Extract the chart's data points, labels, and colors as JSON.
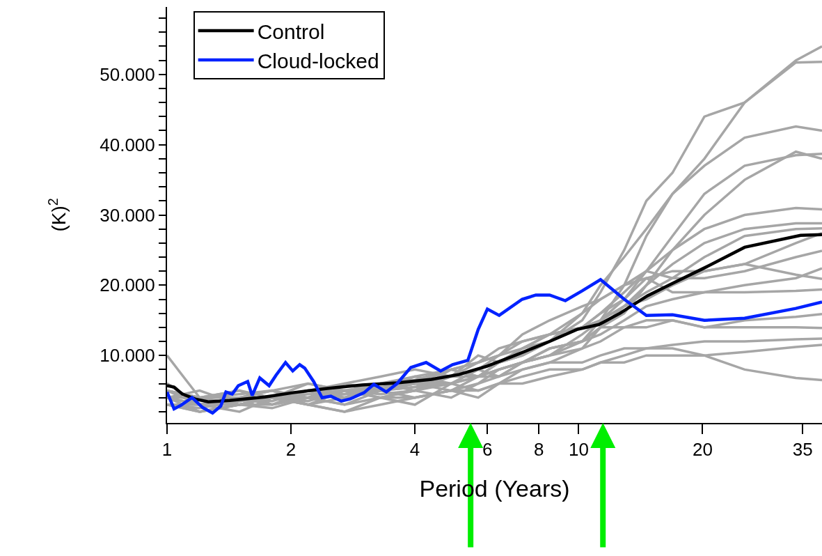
{
  "chart_data": {
    "type": "line",
    "xlabel": "Period (Years)",
    "ylabel": "(K)$^{2}$",
    "log": "x",
    "xlim": [
      1,
      39
    ],
    "xticks": [
      1,
      2,
      4,
      6,
      8,
      10,
      20,
      35
    ],
    "ylim": [
      0.4,
      59.6
    ],
    "yticks": [
      {
        "value": 2,
        "label": null
      },
      {
        "value": 4,
        "label": null
      },
      {
        "value": 6,
        "label": null
      },
      {
        "value": 8,
        "label": null
      },
      {
        "value": 10,
        "label": "10.000"
      },
      {
        "value": 12,
        "label": null
      },
      {
        "value": 14,
        "label": null
      },
      {
        "value": 16,
        "label": null
      },
      {
        "value": 18,
        "label": null
      },
      {
        "value": 20,
        "label": "20.000"
      },
      {
        "value": 22,
        "label": null
      },
      {
        "value": 24,
        "label": null
      },
      {
        "value": 26,
        "label": null
      },
      {
        "value": 28,
        "label": null
      },
      {
        "value": 30,
        "label": "30.000"
      },
      {
        "value": 32,
        "label": null
      },
      {
        "value": 34,
        "label": null
      },
      {
        "value": 36,
        "label": null
      },
      {
        "value": 38,
        "label": null
      },
      {
        "value": 40,
        "label": "40.000"
      },
      {
        "value": 42,
        "label": null
      },
      {
        "value": 44,
        "label": null
      },
      {
        "value": 46,
        "label": null
      },
      {
        "value": 48,
        "label": null
      },
      {
        "value": 50,
        "label": "50.000"
      },
      {
        "value": 52,
        "label": null
      },
      {
        "value": 54,
        "label": null
      },
      {
        "value": 56,
        "label": null
      },
      {
        "value": 58,
        "label": null
      }
    ],
    "legend": "top left",
    "marker": "none",
    "line_style": "solid",
    "x": [
      1,
      1.2,
      1.5,
      1.8,
      2.2,
      2.7,
      3.3,
      4.0,
      4.9,
      5.7,
      6.4,
      7.3,
      8.5,
      10.2,
      11.3,
      12.9,
      14.6,
      16.9,
      20.2,
      25.3,
      33.7,
      39
    ],
    "series": [
      {
        "color": "#a6a6a6",
        "values": [
          6,
          3,
          4,
          3.5,
          5,
          4,
          5,
          5.5,
          6,
          7,
          8,
          9,
          10,
          12,
          15,
          20,
          27,
          33,
          38,
          46,
          52,
          54
        ]
      },
      {
        "color": "#a6a6a6",
        "values": [
          4,
          3,
          3.5,
          4,
          4.5,
          5,
          4.5,
          5,
          7,
          8,
          9,
          10,
          12,
          15,
          19,
          25,
          32,
          36,
          44,
          46,
          51.7,
          51.8
        ]
      },
      {
        "color": "#a6a6a6",
        "values": [
          5,
          4,
          3,
          4,
          5,
          4.5,
          5,
          6,
          8,
          7,
          9,
          11,
          13,
          16,
          20,
          24,
          28,
          33,
          37,
          41,
          42.6,
          42
        ]
      },
      {
        "color": "#a6a6a6",
        "values": [
          3,
          2.5,
          3.5,
          4,
          3,
          5,
          5.5,
          6,
          5,
          7,
          8,
          9,
          10,
          13,
          15,
          18,
          22,
          27,
          33,
          37,
          38.5,
          38.7
        ]
      },
      {
        "color": "#a6a6a6",
        "values": [
          4,
          3,
          4,
          5,
          4,
          6,
          5,
          7,
          6,
          8,
          7,
          9,
          11,
          12,
          14,
          16,
          20,
          25,
          30,
          35,
          39,
          38
        ]
      },
      {
        "color": "#a6a6a6",
        "values": [
          5,
          4,
          4.5,
          5,
          6,
          5,
          6,
          6.5,
          8,
          9,
          10,
          11,
          12,
          14,
          16,
          19,
          22,
          25,
          28,
          30,
          31,
          30.8
        ]
      },
      {
        "color": "#a6a6a6",
        "values": [
          3,
          3,
          3,
          4,
          5,
          4,
          6,
          7,
          8,
          9,
          11,
          12,
          13,
          14,
          15,
          17,
          20,
          23,
          26,
          28,
          28.8,
          28.8
        ]
      },
      {
        "color": "#a6a6a6",
        "values": [
          4,
          5,
          3,
          4,
          3.5,
          5,
          5,
          5.5,
          7,
          7,
          8,
          9,
          11,
          12,
          14,
          17,
          19,
          21,
          24,
          27,
          28,
          28.1
        ]
      },
      {
        "color": "#a6a6a6",
        "values": [
          10,
          4,
          5,
          4,
          5,
          6,
          7,
          8,
          7,
          9,
          10,
          12,
          13,
          14,
          16,
          18,
          21,
          22,
          22,
          23,
          26,
          27.4
        ]
      },
      {
        "color": "#a6a6a6",
        "values": [
          5,
          3,
          4,
          5,
          3,
          4,
          5,
          6,
          6,
          8,
          10,
          13,
          15,
          17,
          18,
          20,
          22,
          21,
          21,
          22,
          24,
          24.9
        ]
      },
      {
        "color": "#a6a6a6",
        "values": [
          4,
          4,
          5,
          3,
          4,
          4.5,
          6,
          5,
          8,
          7,
          9,
          10,
          12,
          16,
          18,
          20,
          21,
          19,
          19,
          20,
          21,
          22.4
        ]
      },
      {
        "color": "#a6a6a6",
        "values": [
          3,
          2,
          3,
          4,
          6,
          5,
          5,
          6,
          7,
          10,
          9,
          11,
          13,
          14,
          15,
          17,
          18,
          20,
          22,
          23,
          21.5,
          20.9
        ]
      },
      {
        "color": "#a6a6a6",
        "values": [
          6,
          3,
          3,
          4,
          4,
          3,
          5,
          4,
          5,
          6,
          8,
          9,
          11,
          12,
          13,
          15,
          17,
          18,
          19,
          19,
          19.2,
          19.4
        ]
      },
      {
        "color": "#a6a6a6",
        "values": [
          4,
          2,
          3,
          2.5,
          4,
          5,
          4,
          3,
          6,
          7,
          7,
          9,
          10,
          11,
          14,
          14,
          14,
          15,
          14,
          15,
          15.5,
          15.9
        ]
      },
      {
        "color": "#a6a6a6",
        "values": [
          5,
          4,
          4,
          3,
          5,
          5,
          4,
          5,
          4,
          6,
          7,
          8,
          9,
          11,
          12,
          14,
          15,
          15,
          14,
          14,
          14,
          13.9
        ]
      },
      {
        "color": "#a6a6a6",
        "values": [
          3,
          3,
          2,
          4,
          3,
          2,
          4,
          5,
          6,
          5,
          6,
          8,
          9,
          9,
          10,
          11,
          11,
          11.5,
          12,
          12,
          12.3,
          12.4
        ]
      },
      {
        "color": "#a6a6a6",
        "values": [
          4,
          3,
          4,
          4,
          3,
          2,
          3,
          4,
          5,
          4,
          6,
          7,
          8,
          8,
          9,
          9,
          10,
          10,
          10,
          10.5,
          11.2,
          11.5
        ]
      },
      {
        "color": "#a6a6a6",
        "values": [
          3,
          2,
          3,
          3,
          4,
          3,
          4,
          4,
          5,
          5,
          6,
          6,
          7,
          8,
          9,
          10,
          11,
          11,
          10,
          8,
          6.8,
          6.5
        ]
      },
      {
        "name": "Control",
        "color": "#000000",
        "x": [
          1,
          1.04,
          1.09,
          1.17,
          1.26,
          1.42,
          1.73,
          2.02,
          2.45,
          2.98,
          3.62,
          4.39,
          5.13,
          6.0,
          7.0,
          8.5,
          9.9,
          11.2,
          12.6,
          14.7,
          17.1,
          20.1,
          25.3,
          34.6,
          39
        ],
        "values": [
          5.7,
          5.5,
          4.5,
          3.8,
          3.4,
          3.6,
          4.1,
          4.7,
          5.3,
          5.8,
          6.1,
          6.6,
          7.3,
          8.5,
          10.0,
          12.0,
          13.7,
          14.4,
          16.0,
          18.5,
          20.4,
          22.4,
          25.4,
          27.1,
          27.2
        ]
      },
      {
        "name": "Cloud-locked",
        "color": "#0022ff",
        "x": [
          1,
          1.04,
          1.08,
          1.15,
          1.22,
          1.29,
          1.35,
          1.39,
          1.44,
          1.49,
          1.57,
          1.61,
          1.68,
          1.77,
          1.84,
          1.94,
          2.02,
          2.1,
          2.16,
          2.27,
          2.38,
          2.5,
          2.65,
          2.78,
          3.01,
          3.18,
          3.41,
          3.62,
          3.91,
          4.26,
          4.62,
          4.94,
          5.38,
          5.7,
          6.0,
          6.41,
          7.29,
          7.87,
          8.5,
          9.28,
          10.2,
          11.3,
          12.9,
          14.6,
          16.9,
          20.2,
          25.3,
          33.7,
          39
        ],
        "values": [
          4.8,
          2.4,
          2.9,
          4.0,
          2.6,
          1.8,
          2.8,
          4.8,
          4.5,
          5.7,
          6.3,
          4.3,
          6.8,
          5.7,
          7.2,
          9.0,
          7.8,
          8.7,
          8.2,
          6.3,
          4.0,
          4.2,
          3.5,
          3.8,
          4.7,
          5.9,
          4.8,
          6.0,
          8.3,
          9.0,
          7.8,
          8.7,
          9.3,
          13.7,
          16.6,
          15.7,
          18.0,
          18.6,
          18.6,
          17.8,
          19.2,
          20.8,
          18.0,
          15.7,
          15.8,
          15.0,
          15.3,
          16.7,
          17.6
        ]
      }
    ]
  }
}
